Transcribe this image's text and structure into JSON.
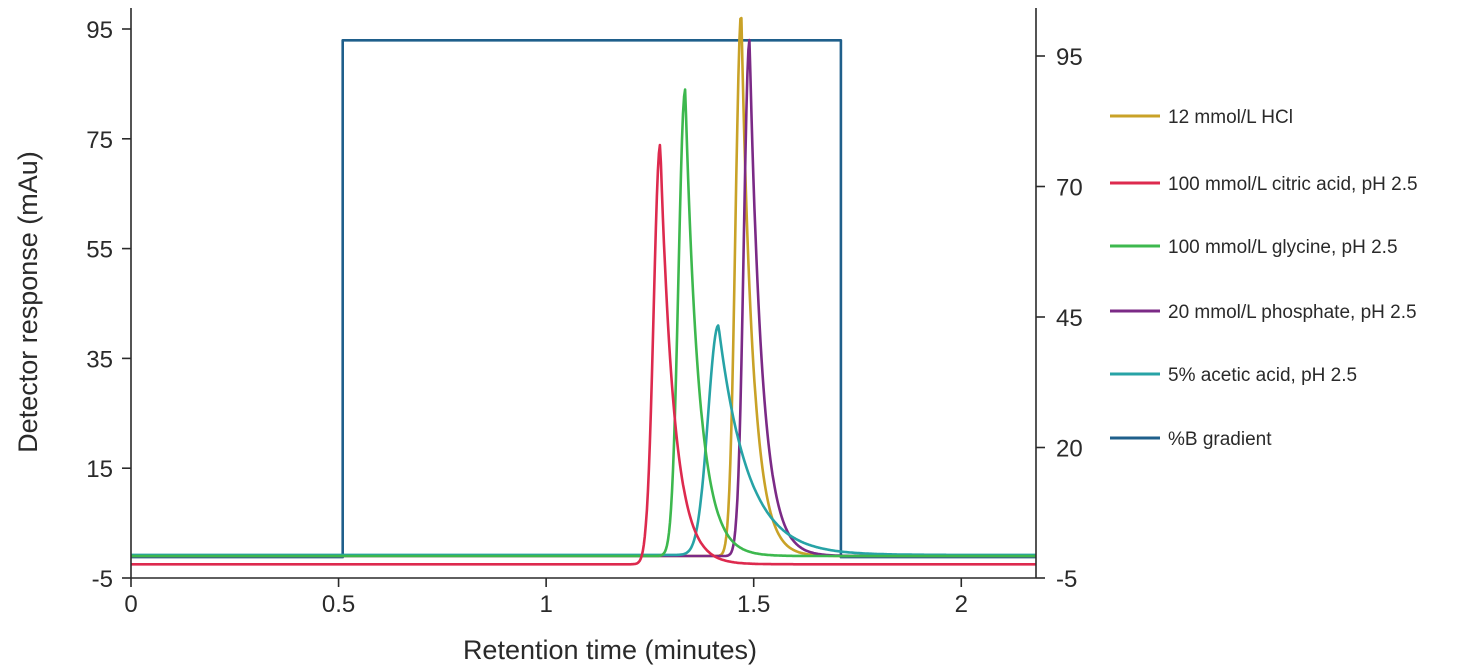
{
  "chart_data": {
    "type": "line",
    "xlabel": "Retention time (minutes)",
    "ylabel": "Detector response (mAu)",
    "y2label": "",
    "xlim": [
      0,
      2.18
    ],
    "ylim": [
      -5,
      100
    ],
    "y2lim": [
      -5,
      105
    ],
    "xticks": [
      0,
      0.5,
      1,
      1.5,
      2
    ],
    "xtick_labels": [
      "0",
      "0.5",
      "1",
      "1.5",
      "2"
    ],
    "yticks": [
      -5,
      15,
      35,
      55,
      75,
      95
    ],
    "ytick_labels": [
      "-5",
      "15",
      "35",
      "55",
      "75",
      "95"
    ],
    "y2ticks": [
      -5,
      20,
      45,
      70,
      95
    ],
    "y2tick_labels": [
      "-5",
      "20",
      "45",
      "70",
      "95"
    ],
    "grid": false,
    "legend_position": "right",
    "series": [
      {
        "name": "12 mmol/L HCl",
        "color": "#c9a227",
        "axis": "left",
        "peak": {
          "x": 1.47,
          "height": 98,
          "baseline": -1,
          "rise": 0.014,
          "tail": 0.028
        }
      },
      {
        "name": "100 mmol/L  citric acid, pH 2.5",
        "color": "#dd2a4e",
        "axis": "left",
        "peak": {
          "x": 1.275,
          "height": 74,
          "baseline": -2.5,
          "rise": 0.016,
          "tail": 0.033
        }
      },
      {
        "name": "100 mmol/L  glycine, pH 2.5",
        "color": "#3db84e",
        "axis": "left",
        "peak": {
          "x": 1.335,
          "height": 84,
          "baseline": -1,
          "rise": 0.016,
          "tail": 0.033
        }
      },
      {
        "name": "20 mmol/L  phosphate, pH 2.5",
        "color": "#7b2a86",
        "axis": "left",
        "peak": {
          "x": 1.49,
          "height": 93,
          "baseline": -1,
          "rise": 0.014,
          "tail": 0.03
        }
      },
      {
        "name": "5% acetic acid, pH 2.5",
        "color": "#27a3a6",
        "axis": "left",
        "peak": {
          "x": 1.415,
          "height": 41,
          "baseline": -0.8,
          "rise": 0.025,
          "tail": 0.07
        }
      },
      {
        "name": "%B gradient",
        "color": "#1f5f8b",
        "axis": "right",
        "x": [
          0,
          0.51,
          0.51,
          1.71,
          1.71,
          2.18
        ],
        "values": [
          -1,
          -1,
          98,
          98,
          -1,
          -1
        ]
      }
    ]
  }
}
